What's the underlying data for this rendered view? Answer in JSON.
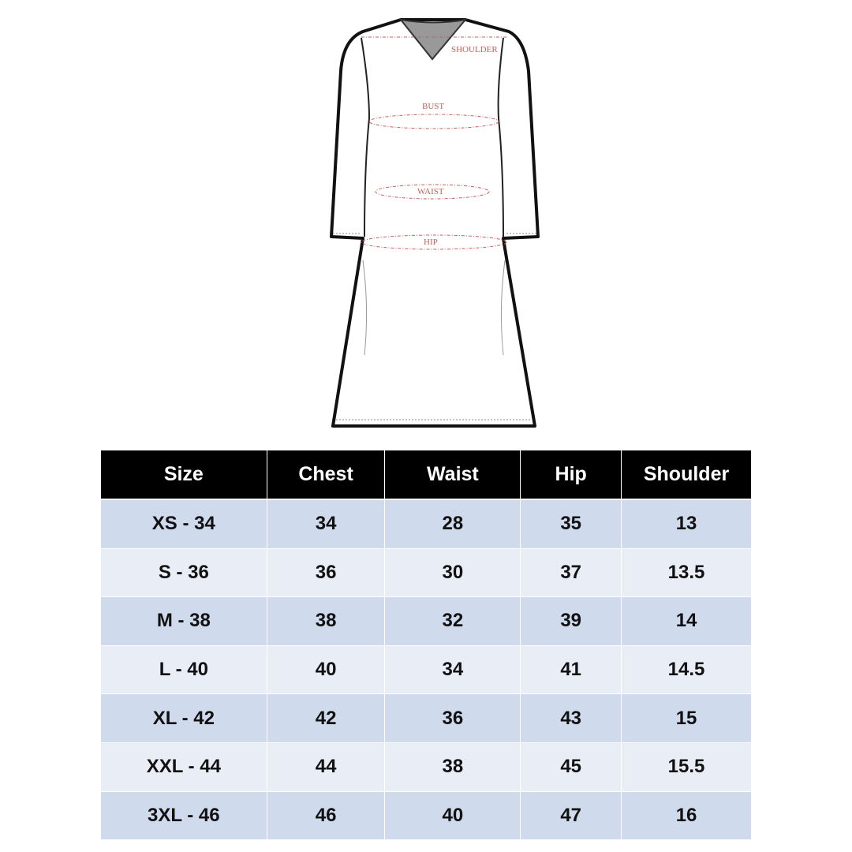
{
  "illustration": {
    "labels": {
      "shoulder": "SHOULDER",
      "bust": "BUST",
      "waist": "WAIST",
      "hip": "HIP"
    },
    "line_color": "#c4605c"
  },
  "table": {
    "headers": [
      "Size",
      "Chest",
      "Waist",
      "Hip",
      "Shoulder"
    ],
    "rows": [
      [
        "XS - 34",
        "34",
        "28",
        "35",
        "13"
      ],
      [
        "S - 36",
        "36",
        "30",
        "37",
        "13.5"
      ],
      [
        "M - 38",
        "38",
        "32",
        "39",
        "14"
      ],
      [
        "L - 40",
        "40",
        "34",
        "41",
        "14.5"
      ],
      [
        "XL - 42",
        "42",
        "36",
        "43",
        "15"
      ],
      [
        "XXL - 44",
        "44",
        "38",
        "45",
        "15.5"
      ],
      [
        "3XL - 46",
        "46",
        "40",
        "47",
        "16"
      ]
    ],
    "colors": {
      "header_bg": "#000000",
      "row_odd": "#cfdaec",
      "row_even": "#e8edf6"
    }
  }
}
